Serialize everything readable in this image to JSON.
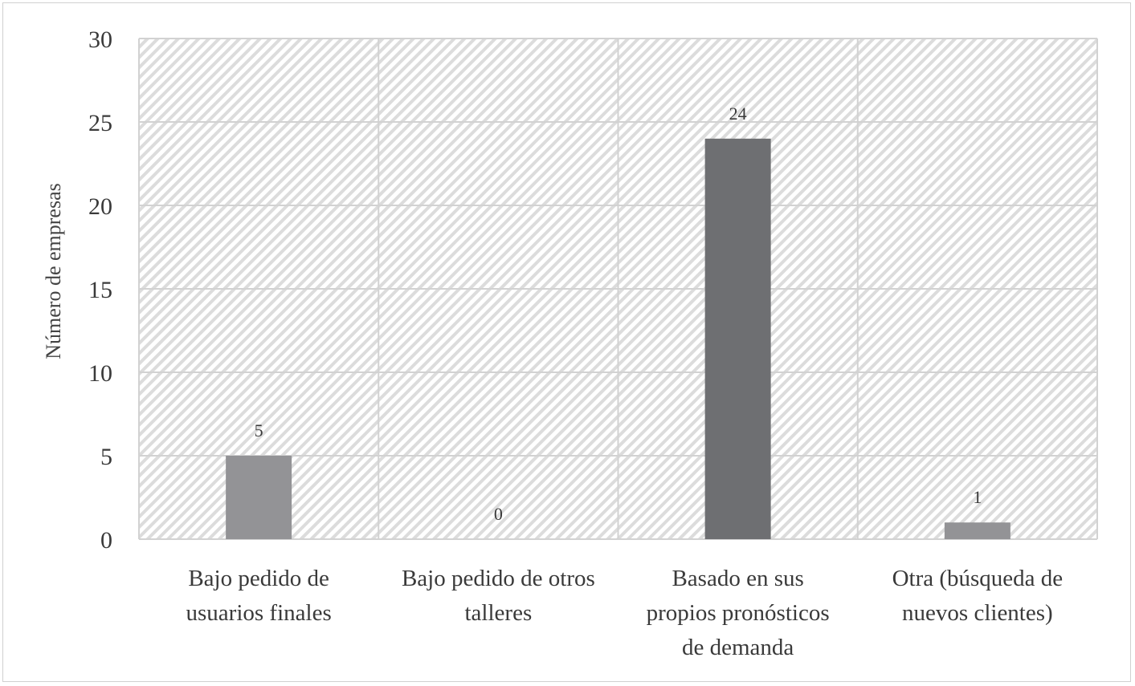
{
  "chart_data": {
    "type": "bar",
    "title": "",
    "ylabel": "Número de empresas",
    "xlabel": "",
    "ylim": [
      0,
      30
    ],
    "yticks": [
      0,
      5,
      10,
      15,
      20,
      25,
      30
    ],
    "grid": true,
    "legend": "none",
    "categories": [
      [
        "Bajo pedido de",
        "usuarios finales"
      ],
      [
        "Bajo pedido de otros",
        "talleres"
      ],
      [
        "Basado en sus",
        "propios pronósticos",
        "de demanda"
      ],
      [
        "Otra (búsqueda de",
        "nuevos clientes)"
      ]
    ],
    "values": [
      5,
      0,
      24,
      1
    ],
    "bar_colors": [
      "#939396",
      "#939396",
      "#6e6f72",
      "#939396"
    ]
  }
}
